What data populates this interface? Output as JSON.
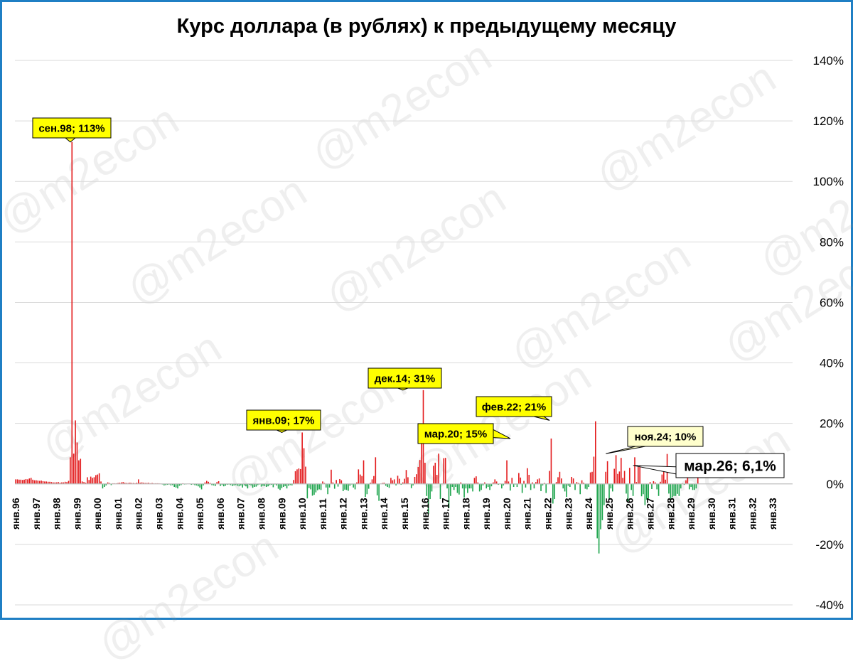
{
  "watermark_text": "@m2econ",
  "chart_data": {
    "type": "bar",
    "title": "Курс доллара (в рублях) к предыдущему месяцу",
    "xlabel": "",
    "ylabel": "",
    "y_axis_position": "right",
    "ylim": [
      -40,
      140
    ],
    "y_ticks": [
      140,
      120,
      100,
      80,
      60,
      40,
      20,
      0,
      -20,
      -40
    ],
    "y_tick_labels": [
      "140%",
      "120%",
      "100%",
      "80%",
      "60%",
      "40%",
      "20%",
      "0%",
      "-20%",
      "-40%"
    ],
    "grid": true,
    "positive_color": "#e31a1c",
    "negative_color": "#1aa34a",
    "x_tick_labels": [
      "янв.96",
      "янв.97",
      "янв.98",
      "янв.99",
      "янв.00",
      "янв.01",
      "янв.02",
      "янв.03",
      "янв.04",
      "янв.05",
      "янв.06",
      "янв.07",
      "янв.08",
      "янв.09",
      "янв.10",
      "янв.11",
      "янв.12",
      "янв.13",
      "янв.14",
      "янв.15",
      "янв.16",
      "янв.17",
      "янв.18",
      "янв.19",
      "янв.20",
      "янв.21",
      "янв.22",
      "янв.23",
      "янв.24",
      "янв.25",
      "янв.26",
      "янв.27",
      "янв.28",
      "янв.29",
      "янв.30",
      "янв.31",
      "янв.32",
      "янв.33"
    ],
    "x_start": "янв.96",
    "series": [
      {
        "values": [
          1.5,
          1.5,
          1.4,
          1.4,
          1.3,
          1.4,
          1.6,
          1.5,
          1.8,
          2.0,
          1.4,
          1.2,
          1.2,
          1.1,
          1.0,
          1.1,
          0.9,
          0.8,
          0.8,
          0.7,
          0.7,
          0.6,
          0.5,
          0.5,
          0.5,
          0.6,
          0.4,
          0.5,
          0.5,
          0.7,
          0.6,
          1.0,
          8.8,
          113.0,
          10.0,
          21.0,
          13.7,
          7.8,
          8.3,
          0.8,
          0.6,
          0.4,
          2.2,
          1.3,
          2.4,
          2.0,
          2.2,
          2.9,
          3.1,
          3.5,
          0.8,
          -1.5,
          -1.0,
          -0.5,
          0.5,
          0.3,
          -0.4,
          0.2,
          0.2,
          0.2,
          0.3,
          0.4,
          0.5,
          0.6,
          0.4,
          0.3,
          0.3,
          0.4,
          0.3,
          0.3,
          0.2,
          0.4,
          1.5,
          0.4,
          0.5,
          0.4,
          0.3,
          0.3,
          0.4,
          0.2,
          0.3,
          0.2,
          0.2,
          0.2,
          0.2,
          0.1,
          -0.2,
          -0.5,
          -0.4,
          -0.3,
          -0.2,
          -0.5,
          -0.4,
          -1.0,
          -1.2,
          -1.5,
          -0.6,
          -0.4,
          0.2,
          -0.2,
          -0.1,
          0.1,
          0.1,
          -0.3,
          -0.2,
          -0.4,
          -0.5,
          -0.8,
          -1.2,
          -1.8,
          -0.5,
          0.5,
          1.0,
          0.7,
          0.3,
          -0.4,
          -0.5,
          -0.7,
          0.6,
          0.9,
          -0.7,
          -0.4,
          -0.8,
          -0.6,
          -0.3,
          -0.2,
          -0.4,
          -0.7,
          -0.5,
          -0.4,
          -0.6,
          -0.8,
          -0.5,
          -1.2,
          -0.5,
          -0.8,
          -1.5,
          -0.3,
          -0.5,
          -1.3,
          -1.0,
          -0.9,
          -0.4,
          -0.2,
          -0.9,
          -0.6,
          -0.7,
          -1.0,
          -0.8,
          -0.4,
          -0.3,
          -1.1,
          -0.2,
          -0.5,
          -1.6,
          -2.0,
          -1.4,
          -1.0,
          -0.7,
          -1.5,
          -0.6,
          -0.4,
          -0.5,
          1.3,
          4.2,
          4.8,
          5.1,
          4.9,
          17.0,
          11.8,
          5.7,
          -4.8,
          -1.4,
          -1.8,
          -3.9,
          -3.6,
          -2.8,
          -2.1,
          -1.8,
          -2.0,
          0.8,
          0.3,
          -1.2,
          -3.4,
          -1.2,
          4.7,
          0.5,
          -1.6,
          1.3,
          -0.9,
          1.6,
          1.2,
          -2.4,
          -1.9,
          -2.0,
          -2.3,
          -0.6,
          -0.2,
          -1.2,
          -1.8,
          0.5,
          4.8,
          3.1,
          2.6,
          7.8,
          -4.3,
          -3.4,
          -1.6,
          0.4,
          1.5,
          2.6,
          8.8,
          -3.8,
          -5.6,
          0.1,
          0.3,
          0.4,
          -0.6,
          -1.0,
          -1.3,
          2.0,
          1.2,
          1.5,
          -0.5,
          2.7,
          1.7,
          -0.3,
          0.5,
          1.7,
          4.6,
          2.2,
          0.1,
          -1.4,
          -0.5,
          2.3,
          3.2,
          5.6,
          7.9,
          13.5,
          31.0,
          7.0,
          -4.0,
          -10.0,
          -5.0,
          -2.5,
          6.0,
          7.0,
          3.0,
          10.0,
          -5.0,
          0.0,
          8.5,
          8.6,
          -1.5,
          -8.0,
          -4.0,
          -1.0,
          -2.0,
          -1.0,
          -3.0,
          -3.5,
          0.5,
          -1.5,
          -4.5,
          -1.5,
          -3.0,
          -1.5,
          -1.5,
          -2.5,
          2.0,
          2.5,
          0.5,
          -2.5,
          -2.0,
          -0.5,
          0.5,
          -1.5,
          -1.0,
          -2.0,
          -0.8,
          0.5,
          1.5,
          0.8,
          -0.3,
          0.0,
          -1.5,
          -0.5,
          1.0,
          7.8,
          0.8,
          -2.2,
          2.0,
          -1.0,
          -0.2,
          -1.0,
          3.6,
          2.1,
          -3.0,
          1.0,
          -1.2,
          5.2,
          3.0,
          -2.0,
          0.5,
          -1.5,
          0.6,
          1.5,
          1.8,
          -2.4,
          -0.5,
          0.3,
          -3.0,
          0.1,
          4.3,
          15.0,
          -6.5,
          -5.0,
          0.6,
          2.2,
          4.0,
          1.8,
          -1.5,
          -2.5,
          -4.3,
          -0.6,
          -1.0,
          2.3,
          1.8,
          -2.0,
          0.6,
          0.3,
          -3.4,
          1.2,
          0.4,
          -1.6,
          -1.8,
          -1.0,
          3.8,
          4.0,
          9.0,
          20.7,
          -18.0,
          -23.0,
          -15.0,
          -12.0,
          -7.0,
          4.0,
          7.5,
          -5.0,
          -1.5,
          -2.5,
          5.0,
          9.5,
          3.3,
          4.1,
          8.6,
          2.0,
          4.3,
          -3.2,
          -6.0,
          5.3,
          -2.0,
          -4.0,
          8.8,
          0.6,
          5.6,
          6.2,
          -4.1,
          -3.4,
          -7.0,
          -5.2,
          -4.8,
          0.6,
          -1.7,
          0.9,
          0.5,
          -1.8,
          -4.0,
          0.7,
          3.1,
          5.3,
          1.4,
          9.9,
          -3.2,
          -5.3,
          -4.4,
          -4.0,
          -4.0,
          -3.3,
          -4.0,
          -1.5,
          0.2,
          -0.3,
          1.2,
          3.3,
          -1.8,
          -1.0,
          -2.0,
          -2.0,
          -1.5,
          6.1
        ],
        "color": "#e31a1c"
      }
    ],
    "annotations": [
      {
        "text": "сен.98; 113%",
        "date": "сен.98",
        "value": 113,
        "style": "yellow"
      },
      {
        "text": "янв.09; 17%",
        "date": "янв.09",
        "value": 17,
        "style": "yellow"
      },
      {
        "text": "дек.14; 31%",
        "date": "дек.14",
        "value": 31,
        "style": "yellow"
      },
      {
        "text": "мар.20; 15%",
        "date": "мар.20",
        "value": 15,
        "style": "yellow"
      },
      {
        "text": "фев.22; 21%",
        "date": "фев.22",
        "value": 21,
        "style": "yellow"
      },
      {
        "text": "ноя.24; 10%",
        "date": "ноя.24",
        "value": 10,
        "style": "lightyellow"
      },
      {
        "text": "мар.26; 6,1%",
        "date": "мар.26",
        "value": 6.1,
        "style": "white"
      }
    ]
  }
}
